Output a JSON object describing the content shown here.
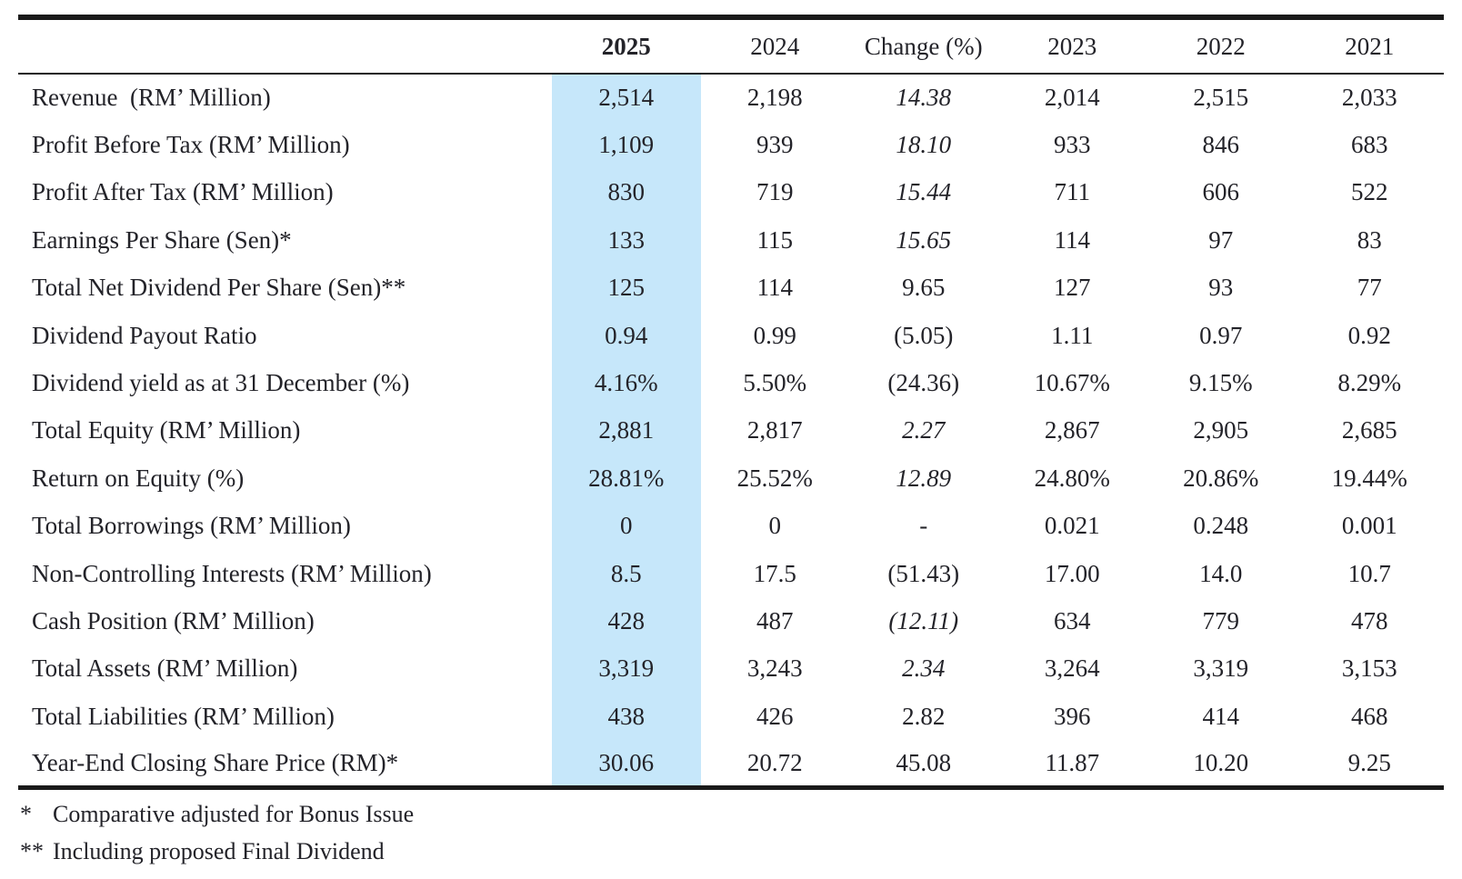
{
  "table": {
    "highlight_color": "#c6e7fa",
    "rule_color": "#1a1a1a",
    "text_color": "#232329",
    "headers": {
      "metric": "",
      "y2025": "2025",
      "y2024": "2024",
      "change": "Change (%)",
      "y2023": "2023",
      "y2022": "2022",
      "y2021": "2021"
    },
    "rows": [
      {
        "label": "Revenue  (RM’ Million)",
        "v2025": "2,514",
        "v2024": "2,198",
        "change": "14.38",
        "change_style": "italic",
        "v2023": "2,014",
        "v2022": "2,515",
        "v2021": "2,033"
      },
      {
        "label": "Profit Before Tax (RM’ Million)",
        "v2025": "1,109",
        "v2024": "939",
        "change": "18.10",
        "change_style": "italic",
        "v2023": "933",
        "v2022": "846",
        "v2021": "683"
      },
      {
        "label": "Profit After Tax (RM’ Million)",
        "v2025": "830",
        "v2024": "719",
        "change": "15.44",
        "change_style": "italic",
        "v2023": "711",
        "v2022": "606",
        "v2021": "522"
      },
      {
        "label": "Earnings Per Share (Sen)*",
        "v2025": "133",
        "v2024": "115",
        "change": "15.65",
        "change_style": "italic",
        "v2023": "114",
        "v2022": "97",
        "v2021": "83"
      },
      {
        "label": "Total Net Dividend Per Share (Sen)**",
        "v2025": "125",
        "v2024": "114",
        "change": "9.65",
        "change_style": "normal",
        "v2023": "127",
        "v2022": "93",
        "v2021": "77"
      },
      {
        "label": "Dividend Payout Ratio",
        "v2025": "0.94",
        "v2024": "0.99",
        "change": "(5.05)",
        "change_style": "normal",
        "v2023": "1.11",
        "v2022": "0.97",
        "v2021": "0.92"
      },
      {
        "label": "Dividend yield as at 31 December (%)",
        "v2025": "4.16%",
        "v2024": "5.50%",
        "change": "(24.36)",
        "change_style": "normal",
        "v2023": "10.67%",
        "v2022": "9.15%",
        "v2021": "8.29%"
      },
      {
        "label": "Total Equity (RM’ Million)",
        "v2025": "2,881",
        "v2024": "2,817",
        "change": "2.27",
        "change_style": "italic",
        "v2023": "2,867",
        "v2022": "2,905",
        "v2021": "2,685"
      },
      {
        "label": "Return on Equity (%)",
        "v2025": "28.81%",
        "v2024": "25.52%",
        "change": "12.89",
        "change_style": "italic",
        "v2023": "24.80%",
        "v2022": "20.86%",
        "v2021": "19.44%"
      },
      {
        "label": "Total Borrowings (RM’ Million)",
        "v2025": "0",
        "v2024": "0",
        "change": "-",
        "change_style": "normal",
        "v2023": "0.021",
        "v2022": "0.248",
        "v2021": "0.001"
      },
      {
        "label": "Non-Controlling Interests (RM’ Million)",
        "v2025": "8.5",
        "v2024": "17.5",
        "change": "(51.43)",
        "change_style": "normal",
        "v2023": "17.00",
        "v2022": "14.0",
        "v2021": "10.7"
      },
      {
        "label": "Cash Position (RM’ Million)",
        "v2025": "428",
        "v2024": "487",
        "change": "(12.11)",
        "change_style": "italic",
        "v2023": "634",
        "v2022": "779",
        "v2021": "478"
      },
      {
        "label": "Total Assets (RM’ Million)",
        "v2025": "3,319",
        "v2024": "3,243",
        "change": "2.34",
        "change_style": "italic",
        "v2023": "3,264",
        "v2022": "3,319",
        "v2021": "3,153"
      },
      {
        "label": "Total Liabilities (RM’ Million)",
        "v2025": "438",
        "v2024": "426",
        "change": "2.82",
        "change_style": "normal",
        "v2023": "396",
        "v2022": "414",
        "v2021": "468"
      },
      {
        "label": "Year-End Closing Share Price (RM)*",
        "v2025": "30.06",
        "v2024": "20.72",
        "change": "45.08",
        "change_style": "normal",
        "v2023": "11.87",
        "v2022": "10.20",
        "v2021": "9.25"
      }
    ],
    "footnotes": [
      {
        "marker": "*",
        "text": "Comparative adjusted for Bonus Issue"
      },
      {
        "marker": "**",
        "text": "Including proposed Final Dividend"
      }
    ]
  }
}
